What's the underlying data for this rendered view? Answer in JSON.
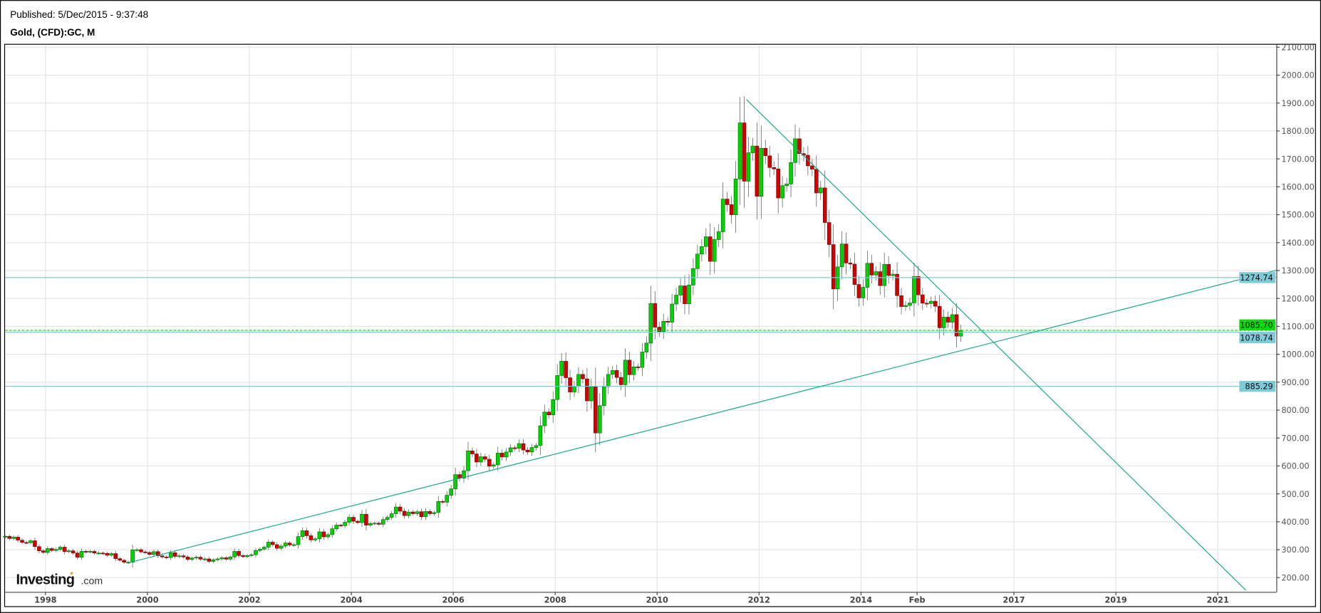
{
  "header": {
    "published": "Published: 5/Dec/2015 - 9:37:48",
    "instrument": "Gold, (CFD):GC, M"
  },
  "logo": {
    "main": "Investing",
    "suffix": ".com"
  },
  "colors": {
    "up": "#00d400",
    "down": "#d40000",
    "trendline": "#1aa88a",
    "level": "#7ecad8",
    "current": "#00e000",
    "grid": "#e4e4e4"
  },
  "chart_data": {
    "type": "candlestick",
    "title": "Gold, (CFD):GC, M",
    "interval": "monthly",
    "ylim": [
      150,
      2120
    ],
    "grid": true,
    "y_ticks": [
      "200.00",
      "300.00",
      "400.00",
      "500.00",
      "600.00",
      "700.00",
      "800.00",
      "900.00",
      "1000.00",
      "1100.00",
      "1200.00",
      "1300.00",
      "1400.00",
      "1500.00",
      "1600.00",
      "1700.00",
      "1800.00",
      "1900.00",
      "2000.00",
      "2100.00"
    ],
    "x_ticks": [
      {
        "label": "1998",
        "t": 1998
      },
      {
        "label": "2000",
        "t": 2000
      },
      {
        "label": "2002",
        "t": 2002
      },
      {
        "label": "2004",
        "t": 2004
      },
      {
        "label": "2006",
        "t": 2006
      },
      {
        "label": "2008",
        "t": 2008
      },
      {
        "label": "2010",
        "t": 2010
      },
      {
        "label": "2012",
        "t": 2012
      },
      {
        "label": "2014",
        "t": 2014
      },
      {
        "label": "Feb",
        "t": 2015.1
      },
      {
        "label": "2017",
        "t": 2017
      },
      {
        "label": "2019",
        "t": 2019
      },
      {
        "label": "2021",
        "t": 2021
      }
    ],
    "start": "1997-03",
    "first_open": 345,
    "close": [
      348,
      340,
      345,
      334,
      326,
      325,
      332,
      311,
      296,
      290,
      304,
      297,
      301,
      309,
      293,
      296,
      288,
      273,
      294,
      292,
      294,
      288,
      288,
      287,
      280,
      286,
      268,
      262,
      255,
      255,
      299,
      300,
      292,
      290,
      283,
      293,
      278,
      274,
      272,
      289,
      276,
      278,
      274,
      265,
      270,
      273,
      266,
      267,
      258,
      264,
      267,
      271,
      266,
      274,
      294,
      279,
      275,
      279,
      282,
      297,
      302,
      309,
      327,
      318,
      305,
      313,
      324,
      317,
      318,
      347,
      368,
      350,
      335,
      339,
      364,
      346,
      354,
      375,
      388,
      386,
      398,
      416,
      402,
      397,
      427,
      388,
      394,
      395,
      391,
      408,
      416,
      429,
      453,
      438,
      422,
      435,
      429,
      436,
      418,
      437,
      429,
      433,
      473,
      470,
      495,
      518,
      569,
      556,
      583,
      654,
      643,
      614,
      633,
      624,
      599,
      604,
      646,
      632,
      650,
      665,
      663,
      680,
      657,
      650,
      666,
      673,
      744,
      793,
      783,
      838,
      924,
      975,
      916,
      865,
      886,
      928,
      912,
      833,
      884,
      718,
      816,
      884,
      928,
      942,
      917,
      891,
      979,
      927,
      955,
      953,
      1008,
      1040,
      1182,
      1097,
      1081,
      1118,
      1115,
      1180,
      1212,
      1245,
      1181,
      1248,
      1307,
      1359,
      1386,
      1421,
      1333,
      1411,
      1439,
      1556,
      1536,
      1500,
      1628,
      1829,
      1620,
      1722,
      1746,
      1566,
      1738,
      1711,
      1669,
      1664,
      1560,
      1604,
      1610,
      1687,
      1772,
      1719,
      1713,
      1675,
      1663,
      1578,
      1596,
      1472,
      1393,
      1234,
      1313,
      1395,
      1327,
      1323,
      1250,
      1202,
      1240,
      1326,
      1284,
      1296,
      1246,
      1322,
      1282,
      1287,
      1210,
      1171,
      1175,
      1184,
      1279,
      1213,
      1183,
      1182,
      1190,
      1172,
      1095,
      1133,
      1115,
      1142,
      1065,
      1085.7
    ],
    "trendlines": [
      {
        "from": {
          "t": 1999.67,
          "price": 255
        },
        "to": {
          "t": 2022.15,
          "price": 1301
        }
      },
      {
        "from": {
          "t": 2011.75,
          "price": 1913
        },
        "to": {
          "t": 2021.55,
          "price": 155
        }
      }
    ],
    "levels": [
      {
        "label": "1274.74",
        "value": 1274.74,
        "style": "level"
      },
      {
        "label": "1085.70",
        "value": 1085.7,
        "style": "current"
      },
      {
        "label": "1078.74",
        "value": 1078.74,
        "style": "level"
      },
      {
        "label": "885.29",
        "value": 885.29,
        "style": "level"
      }
    ]
  }
}
